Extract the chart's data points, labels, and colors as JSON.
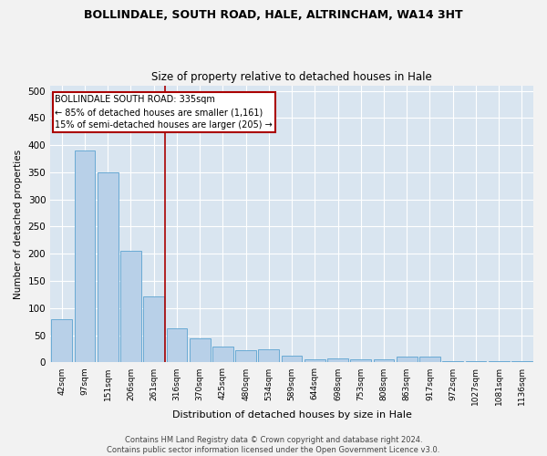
{
  "title": "BOLLINDALE, SOUTH ROAD, HALE, ALTRINCHAM, WA14 3HT",
  "subtitle": "Size of property relative to detached houses in Hale",
  "xlabel": "Distribution of detached houses by size in Hale",
  "ylabel": "Number of detached properties",
  "footer_line1": "Contains HM Land Registry data © Crown copyright and database right 2024.",
  "footer_line2": "Contains public sector information licensed under the Open Government Licence v3.0.",
  "categories": [
    "42sqm",
    "97sqm",
    "151sqm",
    "206sqm",
    "261sqm",
    "316sqm",
    "370sqm",
    "425sqm",
    "480sqm",
    "534sqm",
    "589sqm",
    "644sqm",
    "698sqm",
    "753sqm",
    "808sqm",
    "863sqm",
    "917sqm",
    "972sqm",
    "1027sqm",
    "1081sqm",
    "1136sqm"
  ],
  "values": [
    80,
    390,
    350,
    205,
    122,
    63,
    45,
    30,
    23,
    24,
    13,
    6,
    8,
    6,
    6,
    10,
    10,
    3,
    2,
    2,
    3
  ],
  "bar_color": "#b8d0e8",
  "bar_edge_color": "#6aaad4",
  "plot_bg_color": "#d9e5f0",
  "fig_bg_color": "#f2f2f2",
  "grid_color": "#ffffff",
  "vline_color": "#aa0000",
  "vline_x": 4.5,
  "annotation_title": "BOLLINDALE SOUTH ROAD: 335sqm",
  "annotation_line1": "← 85% of detached houses are smaller (1,161)",
  "annotation_line2": "15% of semi-detached houses are larger (205) →",
  "annotation_box_facecolor": "#ffffff",
  "annotation_box_edgecolor": "#aa0000",
  "ylim": [
    0,
    510
  ],
  "yticks": [
    0,
    50,
    100,
    150,
    200,
    250,
    300,
    350,
    400,
    450,
    500
  ]
}
